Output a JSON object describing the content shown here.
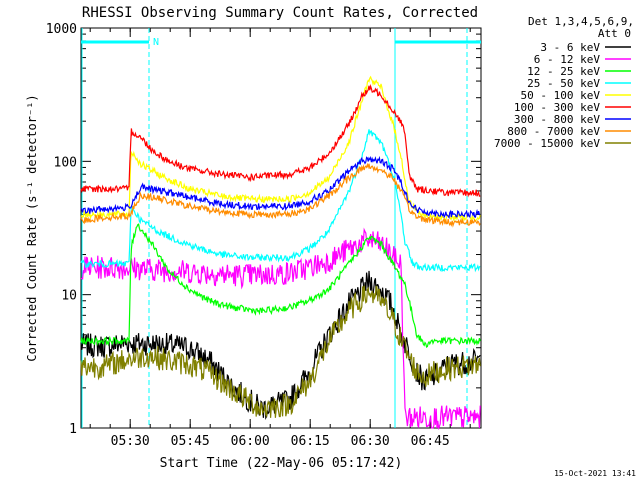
{
  "chart_data": {
    "type": "line",
    "title": "RHESSI Observing Summary Count Rates, Corrected",
    "xlabel": "Start Time (22-May-06 05:17:42)",
    "ylabel": "Corrected Count Rate (s⁻¹ detector⁻¹)",
    "yscale": "log",
    "ylim": [
      1,
      1000
    ],
    "xlim_minutes_after_0517": [
      0,
      100
    ],
    "x_ticks": [
      "05:30",
      "05:45",
      "06:00",
      "06:15",
      "06:30",
      "06:45"
    ],
    "x_tick_minutes": [
      12.3,
      27.3,
      42.3,
      57.3,
      72.3,
      87.3
    ],
    "y_ticks": [
      "1",
      "10",
      "100",
      "1000"
    ],
    "y_tick_values": [
      1,
      10,
      100,
      1000
    ],
    "legend_header": [
      "Det 1,3,4,5,6,9,",
      "Att 0"
    ],
    "legend_position": "top-right, outside plot",
    "night_marker": "N",
    "flag_bars_minutes": [
      [
        0,
        17
      ],
      [
        78.5,
        100
      ]
    ],
    "vertical_markers_solid_minutes": [
      0,
      78.5
    ],
    "vertical_markers_dashed_minutes": [
      17,
      96.5
    ],
    "footer_date": "15-Oct-2021 13:41",
    "series": [
      {
        "name": "3 - 6 keV",
        "color": "#000000",
        "x": [
          0,
          6,
          12,
          13,
          17,
          22,
          27,
          32,
          38,
          45,
          52,
          57,
          62,
          67,
          72,
          75,
          78,
          80,
          82,
          84,
          86,
          88,
          92,
          96,
          100
        ],
        "y": [
          4.2,
          4.1,
          4.4,
          4.3,
          4.3,
          4.2,
          4.0,
          3.2,
          2.0,
          1.4,
          1.6,
          2.6,
          5.0,
          8.5,
          12.5,
          11.0,
          8.0,
          5.0,
          3.8,
          2.6,
          2.2,
          2.4,
          3.0,
          3.1,
          3.2
        ]
      },
      {
        "name": "6 - 12 keV",
        "color": "#ff00ff",
        "x": [
          0,
          6,
          12,
          17,
          25,
          32,
          38,
          45,
          52,
          57,
          62,
          67,
          72,
          76,
          78,
          80,
          81,
          83,
          86,
          88,
          92,
          96,
          100
        ],
        "y": [
          16,
          16,
          16,
          15.5,
          15,
          14.5,
          14,
          14,
          14.5,
          16,
          18,
          22,
          26,
          23,
          19,
          17,
          1.2,
          1.2,
          1.2,
          1.2,
          1.2,
          1.2,
          1.2
        ]
      },
      {
        "name": "12 - 25 keV",
        "color": "#00ff00",
        "x": [
          0,
          6,
          12,
          12.5,
          14,
          17,
          22,
          27,
          32,
          38,
          45,
          52,
          57,
          62,
          67,
          72,
          75,
          78,
          81,
          82,
          84,
          86,
          88,
          92,
          96,
          100
        ],
        "y": [
          4.5,
          4.5,
          4.5,
          22,
          34,
          26,
          15,
          11,
          9,
          8,
          7.5,
          8,
          9,
          11,
          17,
          27,
          24,
          17,
          12,
          9,
          5,
          4.2,
          4.5,
          4.5,
          4.5,
          4.5
        ]
      },
      {
        "name": "25 - 50 keV",
        "color": "#00ffff",
        "x": [
          0,
          6,
          10,
          12,
          12.5,
          15,
          20,
          25,
          30,
          35,
          42,
          52,
          57,
          62,
          67,
          70,
          72,
          75,
          78,
          80,
          81,
          83,
          85,
          88,
          92,
          96,
          100
        ],
        "y": [
          17,
          17,
          17,
          17,
          46,
          36,
          29,
          25,
          22,
          20,
          19,
          19,
          22,
          30,
          60,
          105,
          170,
          140,
          80,
          40,
          25,
          17,
          16,
          16,
          16,
          16,
          16
        ]
      },
      {
        "name": "50 - 100 keV",
        "color": "#ffff00",
        "x": [
          0,
          6,
          12,
          12.5,
          15,
          20,
          27,
          35,
          42,
          52,
          57,
          62,
          67,
          70,
          72,
          75,
          78,
          80,
          81,
          82,
          85,
          88,
          92,
          96,
          100
        ],
        "y": [
          40,
          40,
          40,
          120,
          95,
          78,
          62,
          55,
          52,
          52,
          58,
          75,
          140,
          270,
          420,
          360,
          190,
          110,
          70,
          50,
          40,
          38,
          38,
          38,
          38
        ]
      },
      {
        "name": "100 - 300 keV",
        "color": "#ff0000",
        "x": [
          0,
          6,
          12,
          12.5,
          15,
          18,
          22,
          27,
          35,
          42,
          52,
          57,
          62,
          67,
          70,
          72,
          75,
          78,
          80,
          81,
          82,
          84,
          88,
          92,
          96,
          100
        ],
        "y": [
          62,
          62,
          62,
          170,
          150,
          120,
          100,
          88,
          80,
          76,
          80,
          88,
          115,
          190,
          300,
          350,
          320,
          240,
          200,
          160,
          80,
          62,
          60,
          58,
          58,
          58
        ]
      },
      {
        "name": "300 - 800 keV",
        "color": "#0000ff",
        "x": [
          0,
          6,
          12,
          15,
          20,
          27,
          35,
          42,
          52,
          57,
          62,
          67,
          70,
          72,
          75,
          78,
          80,
          82,
          84,
          88,
          92,
          96,
          100
        ],
        "y": [
          42,
          44,
          45,
          64,
          60,
          54,
          48,
          46,
          46,
          50,
          60,
          85,
          100,
          104,
          100,
          88,
          70,
          50,
          43,
          41,
          40,
          40,
          40
        ]
      },
      {
        "name": "800 - 7000 keV",
        "color": "#ff8c00",
        "x": [
          0,
          6,
          12,
          15,
          20,
          27,
          35,
          42,
          52,
          57,
          62,
          67,
          70,
          72,
          75,
          78,
          80,
          82,
          84,
          88,
          92,
          96,
          100
        ],
        "y": [
          36,
          38,
          39,
          56,
          52,
          46,
          42,
          40,
          40,
          44,
          55,
          75,
          88,
          92,
          86,
          75,
          60,
          44,
          38,
          36,
          35,
          35,
          35
        ]
      },
      {
        "name": "7000 - 15000 keV",
        "color": "#808000",
        "x": [
          0,
          6,
          12,
          17,
          22,
          27,
          32,
          38,
          45,
          52,
          57,
          62,
          67,
          72,
          75,
          78,
          80,
          82,
          84,
          86,
          88,
          92,
          96,
          100
        ],
        "y": [
          2.9,
          2.9,
          3.3,
          3.5,
          3.2,
          3.0,
          2.6,
          1.9,
          1.4,
          1.5,
          2.2,
          4.5,
          7.5,
          10.5,
          9.0,
          6.5,
          4.6,
          3.4,
          2.6,
          2.4,
          2.6,
          2.8,
          2.9,
          3.0
        ]
      }
    ]
  }
}
